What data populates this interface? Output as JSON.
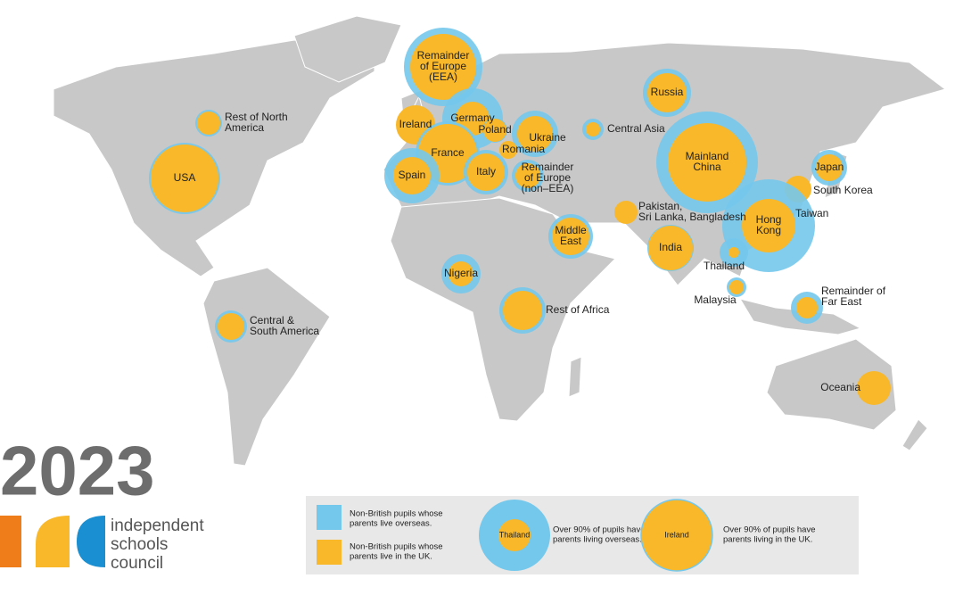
{
  "logo": {
    "year": "2023",
    "lines": [
      "independent",
      "schools",
      "council"
    ]
  },
  "legend": {
    "overseas": {
      "color": "#74c8ec",
      "text": [
        "Non-British pupils whose",
        "parents live overseas."
      ]
    },
    "uk": {
      "color": "#f8b829",
      "text": [
        "Non-British pupils whose",
        "parents live in the UK."
      ]
    },
    "example_overseas": {
      "label": "Thailand",
      "text": [
        "Over 90% of pupils have",
        "parents living overseas."
      ]
    },
    "example_uk": {
      "label": "Ireland",
      "text": [
        "Over 90% of pupils have",
        "parents living in the UK."
      ]
    }
  },
  "regions": [
    {
      "label": [
        "Remainder",
        "of Europe",
        "(EEA)"
      ]
    },
    {
      "label": [
        "Rest of North",
        "America"
      ]
    },
    {
      "label": [
        "USA"
      ]
    },
    {
      "label": [
        "Ireland"
      ]
    },
    {
      "label": [
        "Germany"
      ]
    },
    {
      "label": [
        "Poland"
      ]
    },
    {
      "label": [
        "France"
      ]
    },
    {
      "label": [
        "Ukraine"
      ]
    },
    {
      "label": [
        "Romania"
      ]
    },
    {
      "label": [
        "Spain"
      ]
    },
    {
      "label": [
        "Italy"
      ]
    },
    {
      "label": [
        "Remainder",
        "of Europe",
        "(non–EEA)"
      ]
    },
    {
      "label": [
        "Central Asia"
      ]
    },
    {
      "label": [
        "Russia"
      ]
    },
    {
      "label": [
        "Mainland",
        "China"
      ]
    },
    {
      "label": [
        "Japan"
      ]
    },
    {
      "label": [
        "South Korea"
      ]
    },
    {
      "label": [
        "Pakistan,",
        "Sri Lanka, Bangladesh"
      ]
    },
    {
      "label": [
        "Taiwan"
      ]
    },
    {
      "label": [
        "Hong",
        "Kong"
      ]
    },
    {
      "label": [
        "Middle",
        "East"
      ]
    },
    {
      "label": [
        "India"
      ]
    },
    {
      "label": [
        "Thailand"
      ]
    },
    {
      "label": [
        "Nigeria"
      ]
    },
    {
      "label": [
        "Malaysia"
      ]
    },
    {
      "label": [
        "Rest of Africa"
      ]
    },
    {
      "label": [
        "Remainder of",
        "Far East"
      ]
    },
    {
      "label": [
        "Central &",
        "South America"
      ]
    },
    {
      "label": [
        "Oceania"
      ]
    }
  ]
}
